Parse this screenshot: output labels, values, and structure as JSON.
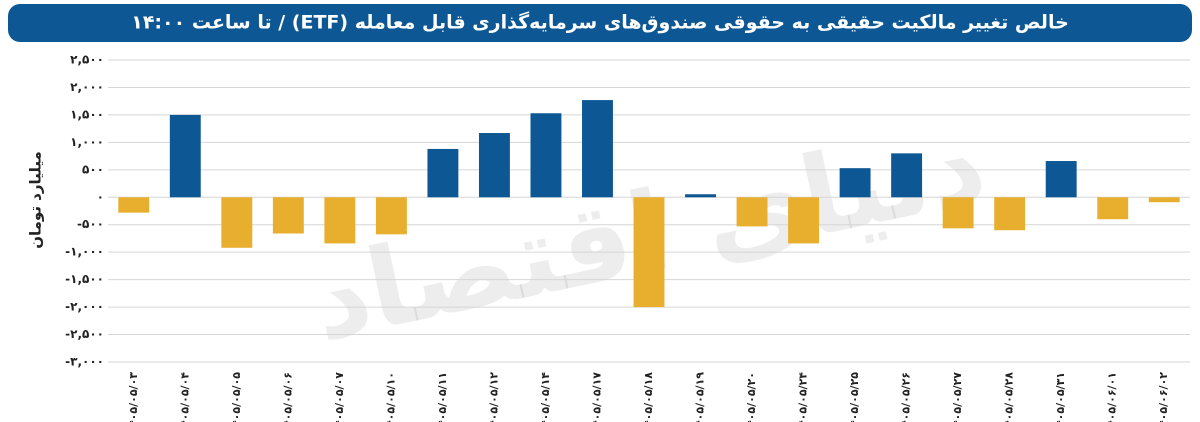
{
  "chart_data": {
    "type": "bar",
    "title": "خالص تغییر مالکیت حقیقی به حقوقی صندوق‌های سرمایه‌گذاری قابل معامله (ETF) / تا ساعت ۱۴:۰۰",
    "y_label": "میلیارد تومان",
    "watermark": "دنیای اقتصاد",
    "categories": [
      "۱۴۰۵/۰۵/۰۳",
      "۱۴۰۵/۰۵/۰۴",
      "۱۴۰۵/۰۵/۰۵",
      "۱۴۰۵/۰۵/۰۶",
      "۱۴۰۵/۰۵/۰۷",
      "۱۴۰۵/۰۵/۱۰",
      "۱۴۰۵/۰۵/۱۱",
      "۱۴۰۵/۰۵/۱۲",
      "۱۴۰۵/۰۵/۱۴",
      "۱۴۰۵/۰۵/۱۷",
      "۱۴۰۵/۰۵/۱۸",
      "۱۴۰۵/۰۵/۱۹",
      "۱۴۰۵/۰۵/۲۰",
      "۱۴۰۵/۰۵/۲۴",
      "۱۴۰۵/۰۵/۲۵",
      "۱۴۰۵/۰۵/۲۶",
      "۱۴۰۵/۰۵/۲۷",
      "۱۴۰۵/۰۵/۲۸",
      "۱۴۰۵/۰۵/۳۱",
      "۱۴۰۵/۰۶/۰۱",
      "۱۴۰۵/۰۶/۰۲"
    ],
    "values": [
      -280,
      1500,
      -920,
      -660,
      -840,
      -675,
      880,
      1170,
      1530,
      1770,
      -2000,
      55,
      -530,
      -840,
      530,
      800,
      -565,
      -600,
      660,
      -400,
      -90
    ],
    "positive_color": "#0d5794",
    "negative_color": "#e8ae2e",
    "ylim": [
      -3000,
      2500
    ],
    "yticks": [
      {
        "value": 2500,
        "label": "۲,۵۰۰"
      },
      {
        "value": 2000,
        "label": "۲,۰۰۰"
      },
      {
        "value": 1500,
        "label": "۱,۵۰۰"
      },
      {
        "value": 1000,
        "label": "۱,۰۰۰"
      },
      {
        "value": 500,
        "label": "۵۰۰"
      },
      {
        "value": 0,
        "label": "۰"
      },
      {
        "value": -500,
        "label": "-۵۰۰"
      },
      {
        "value": -1000,
        "label": "-۱,۰۰۰"
      },
      {
        "value": -1500,
        "label": "-۱,۵۰۰"
      },
      {
        "value": -2000,
        "label": "-۲,۰۰۰"
      },
      {
        "value": -2500,
        "label": "-۲,۵۰۰"
      },
      {
        "value": -3000,
        "label": "-۳,۰۰۰"
      }
    ],
    "grid": true
  }
}
